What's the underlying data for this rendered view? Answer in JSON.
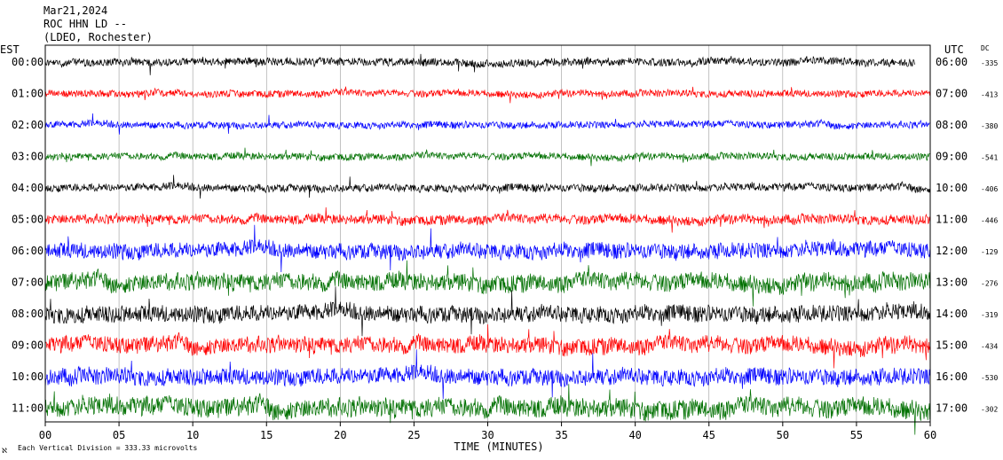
{
  "header": {
    "date": "Mar21,2024",
    "station": "ROC HHN LD --",
    "location": "(LDEO, Rochester)"
  },
  "left_axis_label": "EST",
  "right_axis_label": "UTC",
  "dc_label": "DC",
  "footer": {
    "scale_note": "Each Vertical Division = 333.33 microvolts",
    "corner_glyph": "ℵ"
  },
  "colors": {
    "trace_cycle": [
      "#000000",
      "#ff0000",
      "#0000ff",
      "#007000"
    ],
    "frame": "#000000",
    "grid": "#9a9a9a"
  },
  "chart_data": {
    "type": "line",
    "subtype": "helicorder",
    "xlabel": "TIME (MINUTES)",
    "xlim": [
      0,
      60
    ],
    "x_ticks": [
      "00",
      "05",
      "10",
      "15",
      "20",
      "25",
      "30",
      "35",
      "40",
      "45",
      "50",
      "55",
      "60"
    ],
    "vertical_gridlines_every_minutes": 5,
    "rows": [
      {
        "est": "00:00",
        "utc": "06:00",
        "dc": "-335",
        "amplitude": 0.45,
        "end_minute": 59
      },
      {
        "est": "01:00",
        "utc": "07:00",
        "dc": "-413",
        "amplitude": 0.4,
        "end_minute": 60
      },
      {
        "est": "02:00",
        "utc": "08:00",
        "dc": "-380",
        "amplitude": 0.4,
        "end_minute": 60
      },
      {
        "est": "03:00",
        "utc": "09:00",
        "dc": "-541",
        "amplitude": 0.4,
        "end_minute": 60
      },
      {
        "est": "04:00",
        "utc": "10:00",
        "dc": "-406",
        "amplitude": 0.45,
        "end_minute": 60
      },
      {
        "est": "05:00",
        "utc": "11:00",
        "dc": "-446",
        "amplitude": 0.55,
        "end_minute": 60
      },
      {
        "est": "06:00",
        "utc": "12:00",
        "dc": "-129",
        "amplitude": 0.9,
        "end_minute": 60
      },
      {
        "est": "07:00",
        "utc": "13:00",
        "dc": "-276",
        "amplitude": 1.0,
        "end_minute": 60
      },
      {
        "est": "08:00",
        "utc": "14:00",
        "dc": "-319",
        "amplitude": 0.95,
        "end_minute": 60
      },
      {
        "est": "09:00",
        "utc": "15:00",
        "dc": "-434",
        "amplitude": 0.95,
        "end_minute": 60
      },
      {
        "est": "10:00",
        "utc": "16:00",
        "dc": "-530",
        "amplitude": 0.95,
        "end_minute": 60
      },
      {
        "est": "11:00",
        "utc": "17:00",
        "dc": "-302",
        "amplitude": 1.1,
        "end_minute": 60
      }
    ]
  }
}
